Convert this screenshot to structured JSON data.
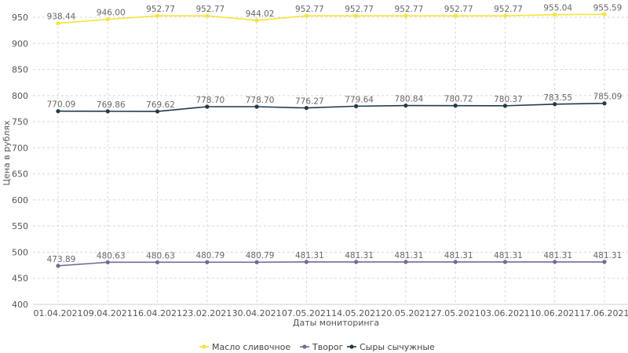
{
  "chart_data": {
    "type": "line",
    "title": "",
    "xlabel": "Даты мониторинга",
    "ylabel": "Цена в рублях",
    "ylim": [
      400,
      950
    ],
    "yticks": [
      400,
      450,
      500,
      550,
      600,
      650,
      700,
      750,
      800,
      850,
      900,
      950
    ],
    "grid": true,
    "legend_position": "bottom-center",
    "categories": [
      "01.04.2021",
      "09.04.2021",
      "16.04.2021",
      "23.02.2021",
      "30.04.2021",
      "07.05.2021",
      "14.05.2021",
      "20.05.2021",
      "27.05.2021",
      "03.06.2021",
      "10.06.2021",
      "17.06.2021"
    ],
    "series": [
      {
        "name": "Масло сливочное",
        "color": "#f5e33a",
        "values": [
          938.44,
          946.0,
          952.77,
          952.77,
          944.02,
          952.77,
          952.77,
          952.77,
          952.77,
          952.77,
          955.04,
          955.59
        ],
        "labels": [
          "938.44",
          "946.00",
          "952.77",
          "952.77",
          "944.02",
          "952.77",
          "952.77",
          "952.77",
          "952.77",
          "952.77",
          "955.04",
          "955.59"
        ]
      },
      {
        "name": "Творог",
        "color": "#7a6699",
        "values": [
          473.89,
          480.63,
          480.63,
          480.79,
          480.79,
          481.31,
          481.31,
          481.31,
          481.31,
          481.31,
          481.31,
          481.31
        ],
        "labels": [
          "473.89",
          "480.63",
          "480.63",
          "480.79",
          "480.79",
          "481.31",
          "481.31",
          "481.31",
          "481.31",
          "481.31",
          "481.31",
          "481.31"
        ]
      },
      {
        "name": "Сыры сычужные",
        "color": "#223a4a",
        "values": [
          770.09,
          769.86,
          769.62,
          778.7,
          778.7,
          776.27,
          779.64,
          780.84,
          780.72,
          780.37,
          783.55,
          785.09
        ],
        "labels": [
          "770.09",
          "769.86",
          "769.62",
          "778.70",
          "778.70",
          "776.27",
          "779.64",
          "780.84",
          "780.72",
          "780.37",
          "783.55",
          "785.09"
        ]
      }
    ]
  }
}
